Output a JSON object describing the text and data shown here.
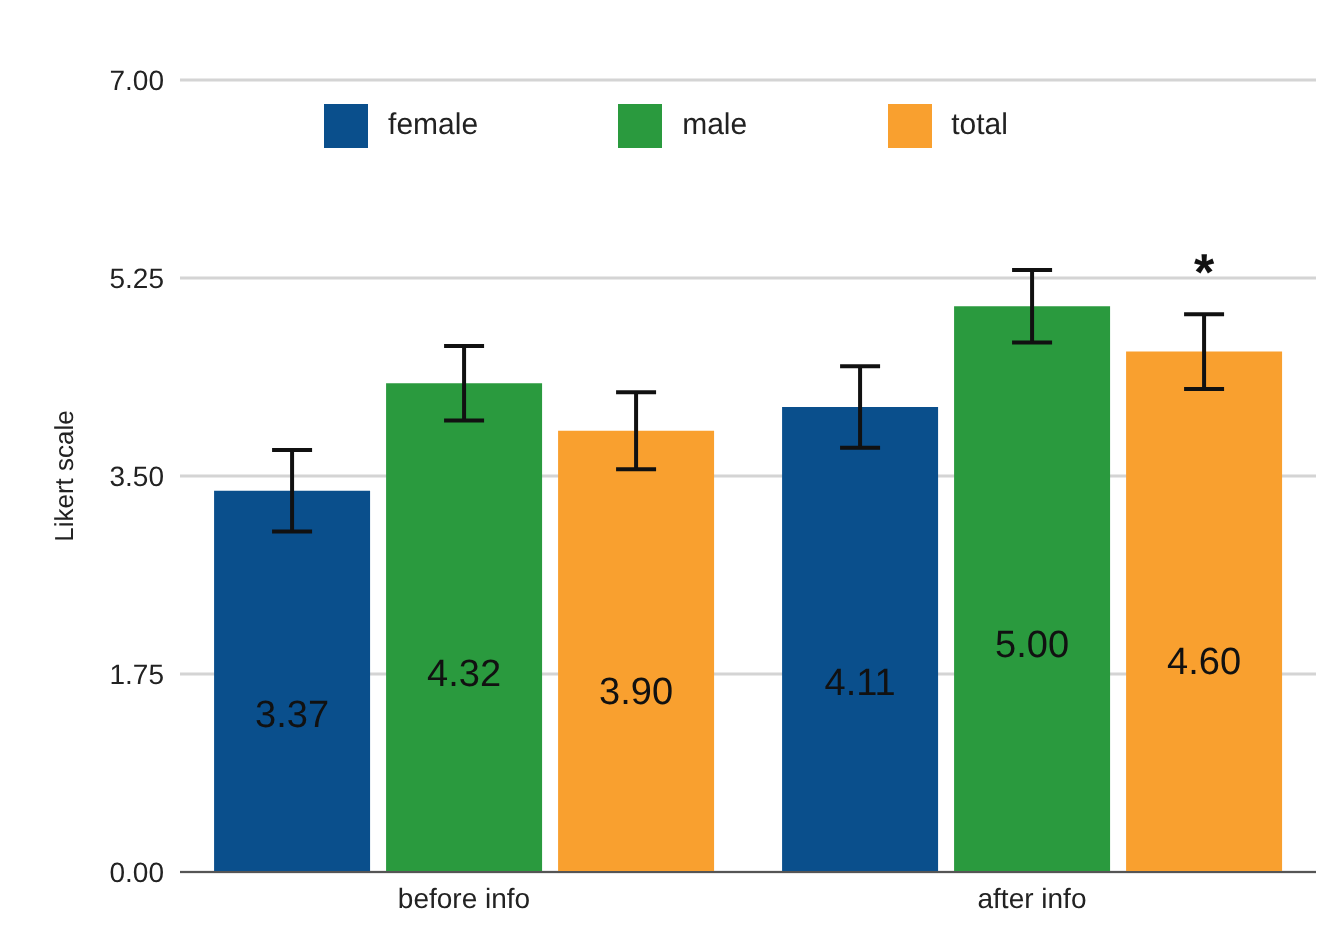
{
  "chart_data": {
    "type": "bar",
    "ylabel": "Likert scale",
    "categories": [
      "before info",
      "after info"
    ],
    "series": [
      {
        "name": "female",
        "color": "#0a4f8c",
        "values": [
          3.37,
          4.11
        ],
        "value_labels": [
          "3.37",
          "4.11"
        ],
        "errors": [
          0.36,
          0.36
        ]
      },
      {
        "name": "male",
        "color": "#2a9a3e",
        "values": [
          4.32,
          5.0
        ],
        "value_labels": [
          "4.32",
          "5.00"
        ],
        "errors": [
          0.33,
          0.32
        ]
      },
      {
        "name": "total",
        "color": "#f9a02f",
        "values": [
          3.9,
          4.6
        ],
        "value_labels": [
          "3.90",
          "4.60"
        ],
        "errors": [
          0.34,
          0.33
        ]
      }
    ],
    "ylim": [
      0,
      7
    ],
    "yticks": [
      {
        "value": 0,
        "label": "0.00"
      },
      {
        "value": 1.75,
        "label": "1.75"
      },
      {
        "value": 3.5,
        "label": "3.50"
      },
      {
        "value": 5.25,
        "label": "5.25"
      },
      {
        "value": 7,
        "label": "7.00"
      }
    ],
    "grid": "y",
    "legend": "top",
    "annotations": [
      "*"
    ]
  }
}
